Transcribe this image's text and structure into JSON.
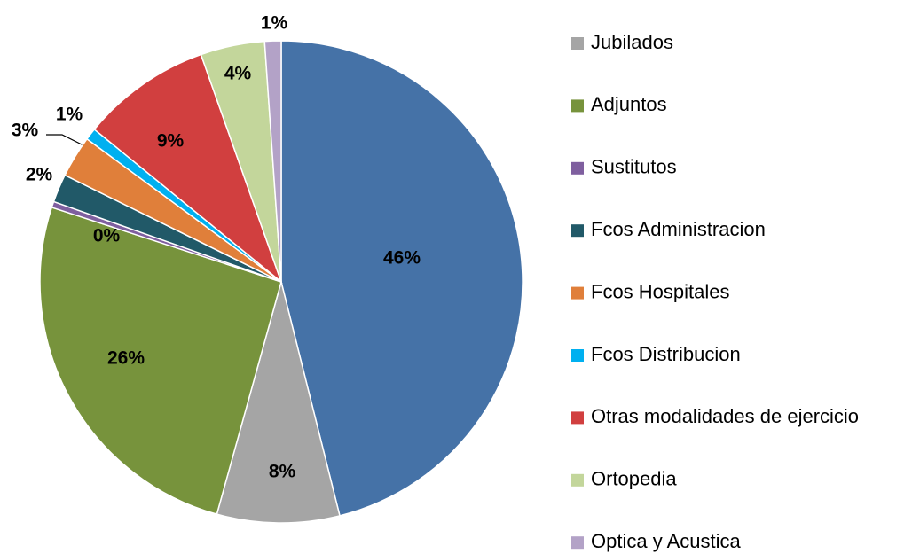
{
  "chart_data": {
    "type": "pie",
    "categories": [
      null,
      "Jubilados",
      "Adjuntos",
      "Sustitutos",
      "Fcos Administracion",
      "Fcos Hospitales",
      "Fcos Distribucion",
      "Otras modalidades de ejercicio",
      "Ortopedia",
      "Optica y Acustica"
    ],
    "values": [
      46.1,
      8.2,
      25.7,
      0.4,
      1.9,
      2.8,
      0.8,
      8.7,
      4.3,
      1.1
    ],
    "value_labels": [
      "46%",
      "8%",
      "26%",
      "0%",
      "2%",
      "3%",
      "1%",
      "9%",
      "4%",
      "1%"
    ],
    "colors": [
      "#4572a7",
      "#a5a5a5",
      "#77933c",
      "#7f5f9f",
      "#215968",
      "#e07f3a",
      "#00b0f0",
      "#d13f3f",
      "#c3d69b",
      "#b3a2c7"
    ],
    "legend": "right"
  }
}
